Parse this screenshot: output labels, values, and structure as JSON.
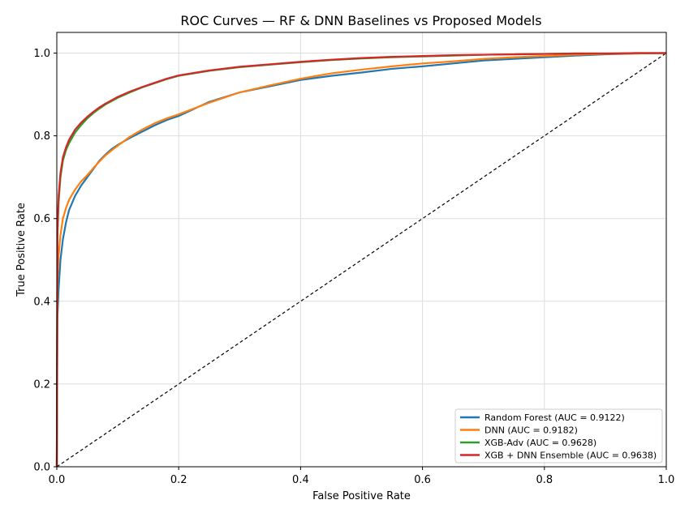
{
  "chart_data": {
    "type": "line",
    "title": "ROC Curves — RF & DNN Baselines vs Proposed Models",
    "xlabel": "False Positive Rate",
    "ylabel": "True Positive Rate",
    "xlim": [
      0.0,
      1.0
    ],
    "ylim": [
      0.0,
      1.05
    ],
    "xticks": [
      "0.0",
      "0.2",
      "0.4",
      "0.6",
      "0.8",
      "1.0"
    ],
    "yticks": [
      "0.0",
      "0.2",
      "0.4",
      "0.6",
      "0.8",
      "1.0"
    ],
    "grid": true,
    "legend_position": "lower-right",
    "reference_line": {
      "style": "dashed",
      "color": "#000000",
      "x": [
        0,
        1
      ],
      "y": [
        0,
        1
      ]
    },
    "series": [
      {
        "name": "Random Forest (AUC = 0.9122)",
        "color": "#1f77b4",
        "x": [
          0,
          0.001,
          0.003,
          0.006,
          0.01,
          0.015,
          0.02,
          0.03,
          0.04,
          0.05,
          0.06,
          0.07,
          0.08,
          0.09,
          0.1,
          0.12,
          0.14,
          0.16,
          0.18,
          0.2,
          0.25,
          0.3,
          0.35,
          0.4,
          0.45,
          0.5,
          0.55,
          0.6,
          0.65,
          0.7,
          0.75,
          0.8,
          0.85,
          0.9,
          0.95,
          1.0
        ],
        "y": [
          0,
          0.36,
          0.43,
          0.5,
          0.55,
          0.59,
          0.62,
          0.655,
          0.68,
          0.7,
          0.72,
          0.74,
          0.755,
          0.768,
          0.778,
          0.795,
          0.81,
          0.825,
          0.838,
          0.848,
          0.882,
          0.905,
          0.92,
          0.935,
          0.945,
          0.953,
          0.962,
          0.968,
          0.975,
          0.982,
          0.986,
          0.99,
          0.994,
          0.997,
          0.999,
          1.0
        ]
      },
      {
        "name": "DNN (AUC = 0.9182)",
        "color": "#ff7f0e",
        "x": [
          0,
          0.001,
          0.003,
          0.006,
          0.01,
          0.015,
          0.02,
          0.03,
          0.04,
          0.05,
          0.06,
          0.07,
          0.08,
          0.09,
          0.1,
          0.12,
          0.14,
          0.16,
          0.18,
          0.2,
          0.25,
          0.3,
          0.35,
          0.4,
          0.45,
          0.5,
          0.55,
          0.6,
          0.65,
          0.7,
          0.75,
          0.8,
          0.85,
          0.9,
          0.95,
          1.0
        ],
        "y": [
          0,
          0.44,
          0.51,
          0.56,
          0.6,
          0.625,
          0.645,
          0.67,
          0.69,
          0.705,
          0.722,
          0.738,
          0.753,
          0.765,
          0.776,
          0.798,
          0.815,
          0.83,
          0.842,
          0.852,
          0.88,
          0.905,
          0.922,
          0.938,
          0.951,
          0.96,
          0.968,
          0.975,
          0.98,
          0.986,
          0.99,
          0.993,
          0.996,
          0.998,
          0.999,
          1.0
        ]
      },
      {
        "name": "XGB-Adv (AUC = 0.9628)",
        "color": "#2ca02c",
        "x": [
          0,
          0.001,
          0.003,
          0.006,
          0.01,
          0.015,
          0.02,
          0.03,
          0.04,
          0.05,
          0.06,
          0.07,
          0.08,
          0.09,
          0.1,
          0.12,
          0.14,
          0.16,
          0.18,
          0.2,
          0.25,
          0.3,
          0.35,
          0.4,
          0.45,
          0.5,
          0.55,
          0.6,
          0.65,
          0.7,
          0.75,
          0.8,
          0.85,
          0.9,
          0.95,
          1.0
        ],
        "y": [
          0,
          0.55,
          0.64,
          0.7,
          0.74,
          0.765,
          0.782,
          0.808,
          0.826,
          0.842,
          0.855,
          0.866,
          0.876,
          0.884,
          0.892,
          0.905,
          0.917,
          0.927,
          0.937,
          0.945,
          0.957,
          0.966,
          0.972,
          0.978,
          0.983,
          0.987,
          0.99,
          0.992,
          0.994,
          0.996,
          0.997,
          0.998,
          0.999,
          0.999,
          1.0,
          1.0
        ]
      },
      {
        "name": "XGB + DNN Ensemble (AUC = 0.9638)",
        "color": "#d62728",
        "x": [
          0,
          0.001,
          0.003,
          0.006,
          0.01,
          0.015,
          0.02,
          0.03,
          0.04,
          0.05,
          0.06,
          0.07,
          0.08,
          0.09,
          0.1,
          0.12,
          0.14,
          0.16,
          0.18,
          0.2,
          0.25,
          0.3,
          0.35,
          0.4,
          0.45,
          0.5,
          0.55,
          0.6,
          0.65,
          0.7,
          0.75,
          0.8,
          0.85,
          0.9,
          0.95,
          1.0
        ],
        "y": [
          0,
          0.57,
          0.655,
          0.71,
          0.748,
          0.772,
          0.79,
          0.815,
          0.832,
          0.846,
          0.858,
          0.869,
          0.878,
          0.886,
          0.894,
          0.907,
          0.918,
          0.928,
          0.938,
          0.946,
          0.958,
          0.967,
          0.973,
          0.979,
          0.984,
          0.988,
          0.991,
          0.993,
          0.995,
          0.996,
          0.997,
          0.998,
          0.999,
          0.999,
          1.0,
          1.0
        ]
      }
    ]
  }
}
